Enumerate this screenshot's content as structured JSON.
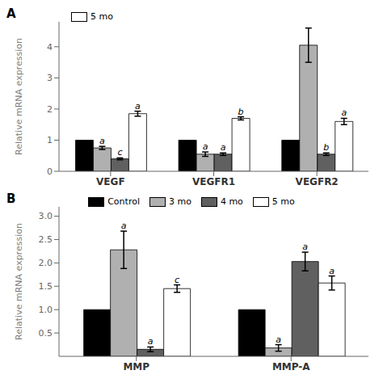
{
  "chart_data": [
    {
      "type": "bar",
      "title": "A",
      "y_label": "Relative mRNA expression",
      "categories": [
        "VEGF",
        "VEGFR1",
        "VEGFR2"
      ],
      "series": [
        {
          "color": "#000000",
          "values": [
            1.0,
            1.0,
            1.0
          ],
          "errors": [
            0.0,
            0.0,
            0.0
          ]
        },
        {
          "color": "#b0b0b0",
          "values": [
            0.75,
            0.55,
            4.05
          ],
          "errors": [
            0.05,
            0.07,
            0.55
          ],
          "annotations": [
            "a",
            "a",
            null
          ]
        },
        {
          "color": "#606060",
          "values": [
            0.4,
            0.55,
            0.55
          ],
          "errors": [
            0.03,
            0.04,
            0.04
          ],
          "annotations": [
            "c",
            "a",
            "b"
          ]
        },
        {
          "name": "5 mo",
          "color": "#ffffff",
          "values": [
            1.85,
            1.7,
            1.6
          ],
          "errors": [
            0.08,
            0.05,
            0.1
          ],
          "annotations": [
            "a",
            "b",
            "a"
          ]
        }
      ],
      "ylim": [
        0.0,
        4.8
      ],
      "yticks": [
        0,
        1,
        2,
        3,
        4
      ],
      "legend": "upper left"
    },
    {
      "type": "bar",
      "title": "B",
      "y_label": "Relative mRNA expression",
      "categories": [
        "MMP",
        "MMP-A"
      ],
      "series": [
        {
          "name": "Control",
          "color": "#000000",
          "values": [
            1.0,
            1.0
          ],
          "errors": [
            0.0,
            0.0
          ]
        },
        {
          "name": "3 mo",
          "color": "#b0b0b0",
          "values": [
            2.28,
            0.18
          ],
          "errors": [
            0.4,
            0.07
          ],
          "annotations": [
            "a",
            "a"
          ]
        },
        {
          "name": "4 mo",
          "color": "#606060",
          "values": [
            0.15,
            2.03
          ],
          "errors": [
            0.05,
            0.2
          ],
          "annotations": [
            "a",
            "a"
          ]
        },
        {
          "name": "5 mo",
          "color": "#ffffff",
          "values": [
            1.45,
            1.57
          ],
          "errors": [
            0.08,
            0.15
          ],
          "annotations": [
            "c",
            "a"
          ]
        }
      ],
      "ylim": [
        0.0,
        3.2
      ],
      "yticks": [
        0.5,
        {
          "value": 1.0,
          "label": "1.0"
        },
        1.5,
        {
          "value": 2.0,
          "label": "2.0"
        },
        2.5,
        {
          "value": 3.0,
          "label": "3.0"
        }
      ],
      "legend": "upper center"
    }
  ]
}
